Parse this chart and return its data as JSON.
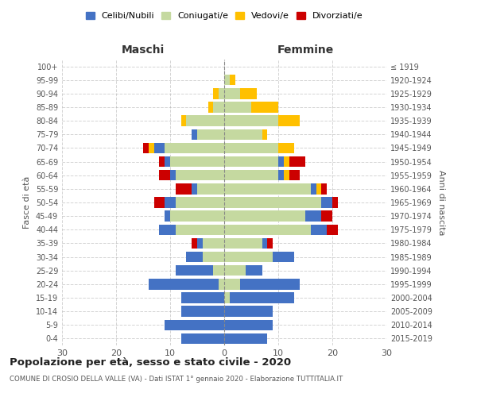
{
  "age_groups": [
    "0-4",
    "5-9",
    "10-14",
    "15-19",
    "20-24",
    "25-29",
    "30-34",
    "35-39",
    "40-44",
    "45-49",
    "50-54",
    "55-59",
    "60-64",
    "65-69",
    "70-74",
    "75-79",
    "80-84",
    "85-89",
    "90-94",
    "95-99",
    "100+"
  ],
  "birth_years": [
    "2015-2019",
    "2010-2014",
    "2005-2009",
    "2000-2004",
    "1995-1999",
    "1990-1994",
    "1985-1989",
    "1980-1984",
    "1975-1979",
    "1970-1974",
    "1965-1969",
    "1960-1964",
    "1955-1959",
    "1950-1954",
    "1945-1949",
    "1940-1944",
    "1935-1939",
    "1930-1934",
    "1925-1929",
    "1920-1924",
    "≤ 1919"
  ],
  "males": {
    "celibe": [
      8,
      11,
      8,
      8,
      13,
      7,
      3,
      1,
      3,
      1,
      2,
      1,
      1,
      1,
      2,
      1,
      0,
      0,
      0,
      0,
      0
    ],
    "coniugato": [
      0,
      0,
      0,
      0,
      1,
      2,
      4,
      4,
      9,
      10,
      9,
      5,
      9,
      10,
      11,
      5,
      7,
      2,
      1,
      0,
      0
    ],
    "vedovo": [
      0,
      0,
      0,
      0,
      0,
      0,
      0,
      0,
      0,
      0,
      0,
      0,
      0,
      0,
      1,
      0,
      1,
      1,
      1,
      0,
      0
    ],
    "divorziato": [
      0,
      0,
      0,
      0,
      0,
      0,
      0,
      1,
      0,
      0,
      2,
      3,
      2,
      1,
      1,
      0,
      0,
      0,
      0,
      0,
      0
    ]
  },
  "females": {
    "nubile": [
      8,
      9,
      9,
      12,
      11,
      3,
      4,
      1,
      3,
      3,
      2,
      1,
      1,
      1,
      0,
      0,
      0,
      0,
      0,
      0,
      0
    ],
    "coniugata": [
      0,
      0,
      0,
      1,
      3,
      4,
      9,
      7,
      16,
      15,
      18,
      16,
      10,
      10,
      10,
      7,
      10,
      5,
      3,
      1,
      0
    ],
    "vedova": [
      0,
      0,
      0,
      0,
      0,
      0,
      0,
      0,
      0,
      0,
      0,
      1,
      1,
      1,
      3,
      1,
      4,
      5,
      3,
      1,
      0
    ],
    "divorziata": [
      0,
      0,
      0,
      0,
      0,
      0,
      0,
      1,
      2,
      2,
      1,
      1,
      2,
      3,
      0,
      0,
      0,
      0,
      0,
      0,
      0
    ]
  },
  "colors": {
    "celibe": "#4472c4",
    "coniugato": "#c5d9a0",
    "vedovo": "#ffc000",
    "divorziato": "#cc0000"
  },
  "title": "Popolazione per età, sesso e stato civile - 2020",
  "subtitle": "COMUNE DI CROSIO DELLA VALLE (VA) - Dati ISTAT 1° gennaio 2020 - Elaborazione TUTTITALIA.IT",
  "xlim": 30,
  "xlabel_left": "Maschi",
  "xlabel_right": "Femmine",
  "ylabel_left": "Fasce di età",
  "ylabel_right": "Anni di nascita",
  "legend_labels": [
    "Celibi/Nubili",
    "Coniugati/e",
    "Vedovi/e",
    "Divorziati/e"
  ]
}
